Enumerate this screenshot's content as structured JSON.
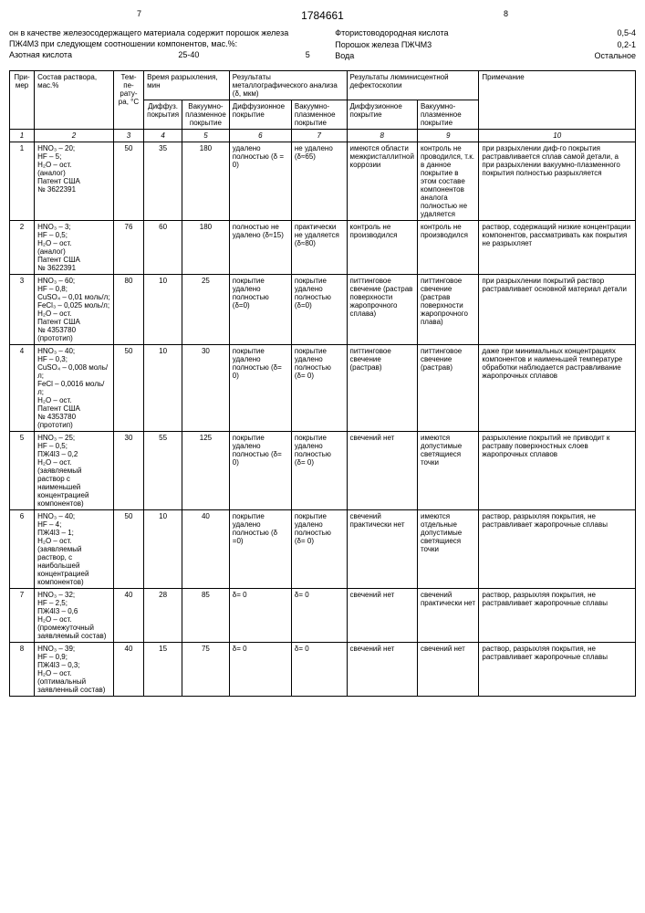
{
  "doc_number": "1784661",
  "page_left": "7",
  "page_right": "8",
  "header_left_text": "он в качестве железосодержащего материала содержит порошок железа ПЖ4М3 при следующем соотношении компонентов, мас.%:",
  "header_left_comp": "Азотная кислота",
  "header_left_val": "25-40",
  "five": "5",
  "header_right": [
    {
      "label": "Фтористоводородная кислота",
      "value": "0,5-4"
    },
    {
      "label": "Порошок железа ПЖЧМ3",
      "value": "0,2-1"
    },
    {
      "label": "Вода",
      "value": "Остальное"
    }
  ],
  "thead": {
    "primer": "При-мер",
    "sostav": "Состав раствора, мас.%",
    "temp": "Тем-пе-рату-ра, °C",
    "vremya": "Время разрыхления, мин",
    "vremya_sub1": "Диффуз. покрытия",
    "vremya_sub2": "Вакуумно-плазменное покрытие",
    "metallo": "Результаты металлографического анализа (δ, мкм)",
    "metallo_sub1": "Диффузионное покрытие",
    "metallo_sub2": "Вакуумно-плазменное покрытие",
    "lumin": "Результаты люминисцентной дефектоскопии",
    "lumin_sub1": "Диффузионное покрытие",
    "lumin_sub2": "Вакуумно-плазменное покрытие",
    "prim": "Примечание"
  },
  "colnums": [
    "1",
    "2",
    "3",
    "4",
    "5",
    "6",
    "7",
    "8",
    "9",
    "10"
  ],
  "rows": [
    {
      "n": "1",
      "sostav": "HNO₃ – 20;\nHF – 5;\nH₂O – ост.\n(аналог)\nПатент США\n№ 3622391",
      "t": "50",
      "v1": "35",
      "v2": "180",
      "m1": "удалено полностью (δ = 0)",
      "m2": "не удалено (δ≈65)",
      "l1": "имеются области межкристаллитной коррозии",
      "l2": "контроль не проводился, т.к. в данное покрытие в этом составе компонентов аналога полностью не удаляется",
      "p": "при разрыхлении диф-го покрытия растравливается сплав самой детали, а при разрыхлении вакуумно-плазменного покрытия полностью разрыхляется"
    },
    {
      "n": "2",
      "sostav": "HNO₃ – 3;\nHF – 0,5;\nH₂O – ост.\n(аналог)\nПатент США\n№ 3622391",
      "t": "76",
      "v1": "60",
      "v2": "180",
      "m1": "полностью не удалено (δ≈15)",
      "m2": "практически не удаляется (δ≈80)",
      "l1": "контроль не производился",
      "l2": "контроль не производился",
      "p": "раствор, содержащий низкие концентрации компонентов, рассматривать как покрытия не разрыхляет"
    },
    {
      "n": "3",
      "sostav": "HNO₃ – 60;\nHF – 0,8;\nCuSO₄ – 0,01 моль/л;\nFeCl₃ – 0,025 моль/л;\nH₂O – ост.\nПатент США\n№ 4353780\n(прототип)",
      "t": "80",
      "v1": "10",
      "v2": "25",
      "m1": "покрытие удалено полностью (δ=0)",
      "m2": "покрытие удалено полностью (δ=0)",
      "l1": "питтинговое свечение (растрав поверхности жаропрочного сплава)",
      "l2": "питтинговое свечение (растрав поверхности жаропрочного плава)",
      "p": "при разрыхлении покрытий раствор растравливает основной материал детали"
    },
    {
      "n": "4",
      "sostav": "HNO₃ – 40;\nHF – 0,3;\nCuSO₄ – 0,008 моль/л;\nFeCl – 0,0016 моль/л;\nH₂O – ост.\nПатент США\n№ 4353780\n(прототип)",
      "t": "50",
      "v1": "10",
      "v2": "30",
      "m1": "покрытие удалено полностью (δ= 0)",
      "m2": "покрытие удалено полностью (δ= 0)",
      "l1": "питтинговое свечение (растрав)",
      "l2": "питтинговое свечение (растрав)",
      "p": "даже при минимальных концентрациях компонентов и наименьшей температуре обработки наблюдается растравливание жаропрочных сплавов"
    },
    {
      "n": "5",
      "sostav": "HNO₃ – 25;\nHF – 0,5;\nПЖ4I3 – 0,2\nH₂O – ост.\n(заявляемый раствор с наименьшей концентрацией компонентов)",
      "t": "30",
      "v1": "55",
      "v2": "125",
      "m1": "покрытие удалено полностью (δ= 0)",
      "m2": "покрытие удалено полностью (δ= 0)",
      "l1": "свечений нет",
      "l2": "имеются допустимые светящиеся точки",
      "p": "разрыхление покрытий не приводит к растраву поверхностных слоев жаропрочных сплавов"
    },
    {
      "n": "6",
      "sostav": "HNO₃ – 40;\nHF – 4;\nПЖ4I3 – 1;\nH₂O – ост.\n(заявляемый раствор, с наибольшей концентрацией компонентов)",
      "t": "50",
      "v1": "10",
      "v2": "40",
      "m1": "покрытие удалено полностью (δ =0)",
      "m2": "покрытие удалено полностью (δ= 0)",
      "l1": "свечений практически нет",
      "l2": "имеются отдельные допустимые светящиеся точки",
      "p": "раствор, разрыхляя покрытия, не растравливает жаропрочные сплавы"
    },
    {
      "n": "7",
      "sostav": "HNO₃ – 32;\nHF – 2,5;\nПЖ4I3 – 0,6\nH₂O – ост.\n(промежуточный заявляемый состав)",
      "t": "40",
      "v1": "28",
      "v2": "85",
      "m1": "δ= 0",
      "m2": "δ= 0",
      "l1": "свечений нет",
      "l2": "свечений практически нет",
      "p": "раствор, разрыхляя покрытия, не растравливает жаропрочные сплавы"
    },
    {
      "n": "8",
      "sostav": "HNO₃ – 39;\nHF – 0,9;\nПЖ4I3 – 0,3;\nH₂O – ост.\n(оптимальный заявленный состав)",
      "t": "40",
      "v1": "15",
      "v2": "75",
      "m1": "δ= 0",
      "m2": "δ= 0",
      "l1": "свечений нет",
      "l2": "свечений нет",
      "p": "раствор, разрыхляя покрытия, не растравливает жаропрочные сплавы"
    }
  ]
}
